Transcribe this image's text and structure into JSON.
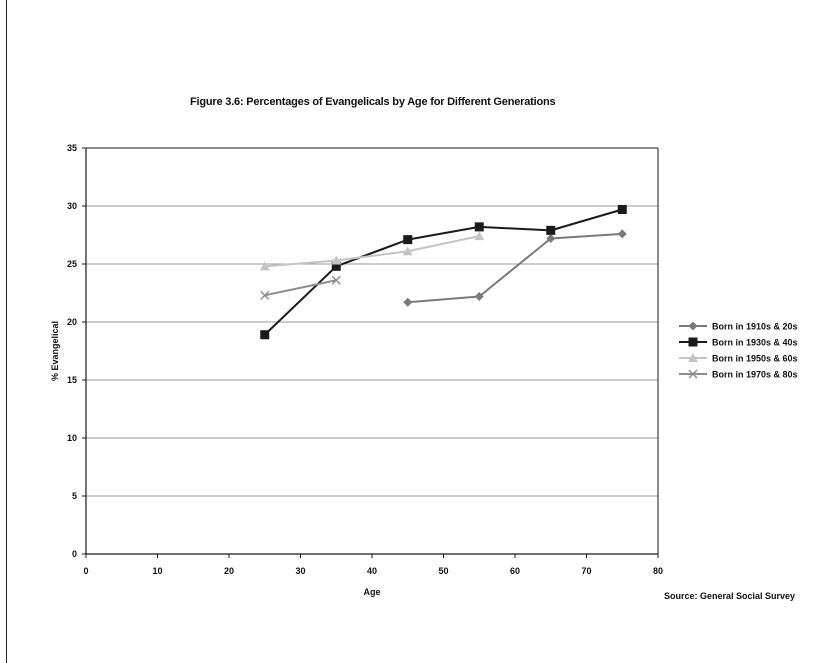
{
  "chart_data": {
    "type": "line",
    "title": "Figure 3.6: Percentages of Evangelicals by Age for Different Generations",
    "xlabel": "Age",
    "ylabel": "% Evangelical",
    "xlim": [
      0,
      80
    ],
    "ylim": [
      0,
      35
    ],
    "xticks": [
      0,
      10,
      20,
      30,
      40,
      50,
      60,
      70,
      80
    ],
    "yticks": [
      0,
      5,
      10,
      15,
      20,
      25,
      30,
      35
    ],
    "grid": "horizontal",
    "legend_position": "right",
    "source": "Source: General Social Survey",
    "series": [
      {
        "name": "Born in 1910s & 20s",
        "marker": "diamond",
        "color": "#7a7a7a",
        "points": [
          [
            45,
            21.7
          ],
          [
            55,
            22.2
          ],
          [
            65,
            27.2
          ],
          [
            75,
            27.6
          ]
        ]
      },
      {
        "name": "Born in 1930s & 40s",
        "marker": "square",
        "color": "#1a1a1a",
        "points": [
          [
            25,
            18.9
          ],
          [
            35,
            24.8
          ],
          [
            45,
            27.1
          ],
          [
            55,
            28.2
          ],
          [
            65,
            27.9
          ],
          [
            75,
            29.7
          ]
        ]
      },
      {
        "name": "Born in 1950s & 60s",
        "marker": "triangle",
        "color": "#c4c4c4",
        "points": [
          [
            25,
            24.8
          ],
          [
            35,
            25.3
          ],
          [
            45,
            26.1
          ],
          [
            55,
            27.4
          ]
        ]
      },
      {
        "name": "Born in 1970s & 80s",
        "marker": "x",
        "color": "#8c8c8c",
        "points": [
          [
            25,
            22.3
          ],
          [
            35,
            23.6
          ]
        ]
      }
    ]
  }
}
